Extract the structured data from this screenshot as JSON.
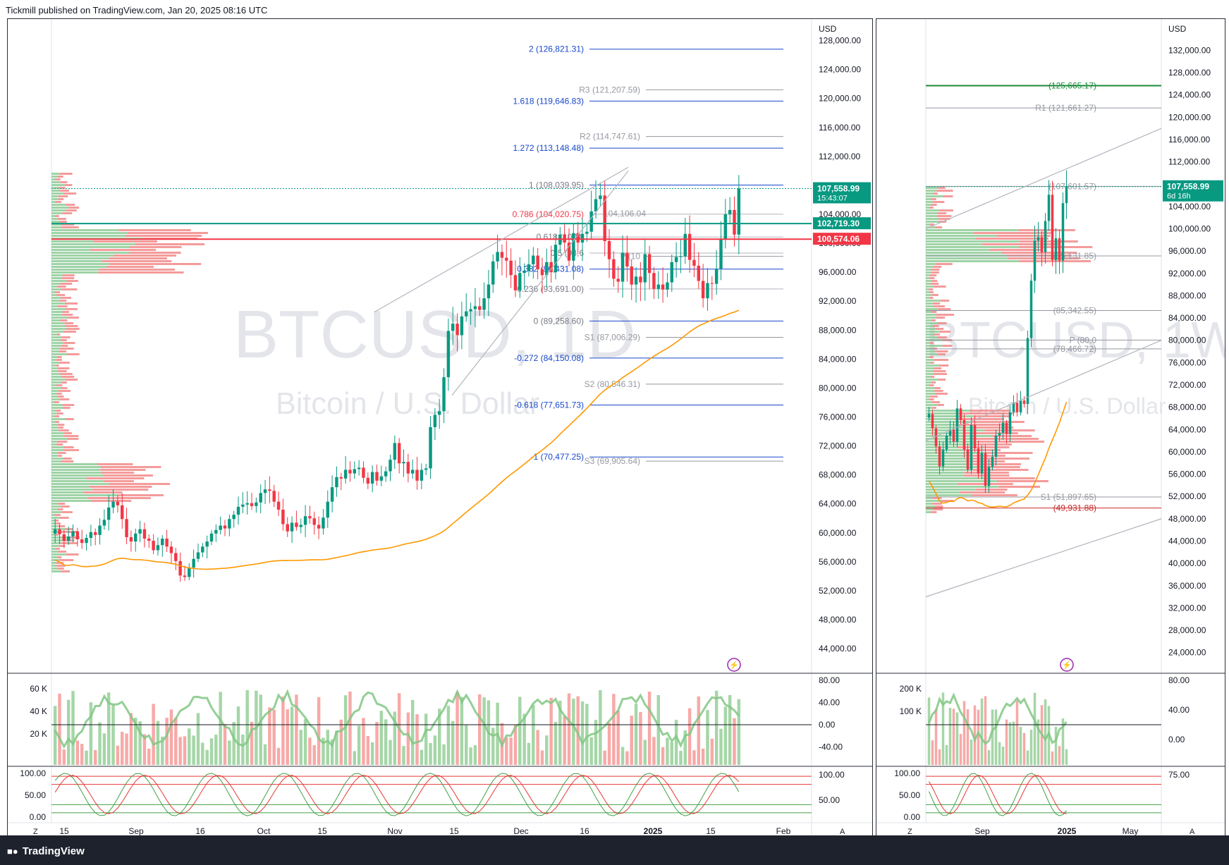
{
  "header": {
    "published": "Tickmill published on TradingView.com, Jan 20, 2025 08:16 UTC"
  },
  "footer": {
    "brand": "TradingView",
    "brand_icon": "tradingview-logo-icon"
  },
  "colors": {
    "up": "#089981",
    "down": "#f23645",
    "fib": "#2962ff",
    "pivot": "#9598a1",
    "ma": "#ff9800"
  },
  "chart_data": [
    {
      "type": "candlestick",
      "symbol": "BTCUSD, 1D",
      "description": "Bitcoin / U.S. Dollar",
      "currency": "USD",
      "y_ticks": [
        "128,000.00",
        "124,000.00",
        "120,000.00",
        "116,000.00",
        "112,000.00",
        "108,000.00",
        "104,000.00",
        "100,000.00",
        "96,000.00",
        "92,000.00",
        "88,000.00",
        "84,000.00",
        "80,000.00",
        "76,000.00",
        "72,000.00",
        "68,000.00",
        "64,000.00",
        "60,000.00",
        "56,000.00",
        "52,000.00",
        "48,000.00",
        "44,000.00"
      ],
      "ylim": [
        40600,
        130200
      ],
      "x_labels": [
        "15",
        "Sep",
        "16",
        "Oct",
        "15",
        "Nov",
        "15",
        "Dec",
        "16",
        "2025",
        "15",
        "Feb"
      ],
      "fib_levels": [
        {
          "label": "2 (126,821.31)",
          "value": 126821.31
        },
        {
          "label": "1.618 (119,646.83)",
          "value": 119646.83
        },
        {
          "label": "1.272 (113,148.48)",
          "value": 113148.48
        },
        {
          "label": "1 (108,039.95)",
          "value": 108039.95
        },
        {
          "label": "0.786 (104,020.75)",
          "value": 104020.75
        },
        {
          "label": "0.618 (100,8",
          "value": 100870
        },
        {
          "label": "0.5 (98,6",
          "value": 98650
        },
        {
          "label": "0.382 (96,431.08)",
          "value": 96431.08
        },
        {
          "label": "0.236 (93,691.00)",
          "value": 93691.0
        },
        {
          "label": "0 (89,258.60)",
          "value": 89258.6
        },
        {
          "label": "-0.272 (84,150.08)",
          "value": 84150.08
        },
        {
          "label": "-0.618 (77,651.73)",
          "value": 77651.73
        },
        {
          "label": "-1 (70,477.25)",
          "value": 70477.25
        }
      ],
      "pivots": [
        {
          "label": "R3 (121,207.59)",
          "value": 121207.59
        },
        {
          "label": "R2 (114,747.61)",
          "value": 114747.61
        },
        {
          "label": "P (10",
          "value": 98200
        },
        {
          "label": "S1 (87,006.29)",
          "value": 87006.29
        },
        {
          "label": "S2 (80,546.31)",
          "value": 80546.31
        },
        {
          "label": "S3 (69,905.64)",
          "value": 69905.64
        }
      ],
      "extra_label": "104,106.04",
      "price_tags": [
        {
          "text": "107,558.99",
          "sub": "15:43:07",
          "value": 107558.99,
          "color": "#089981"
        },
        {
          "text": "102,719.30",
          "value": 102719.3,
          "color": "#089981"
        },
        {
          "text": "100,574.06",
          "value": 100574.06,
          "color": "#f23645"
        }
      ],
      "closes": [
        60500,
        59800,
        58900,
        59500,
        60200,
        59100,
        58600,
        59300,
        60100,
        59700,
        61000,
        61800,
        63500,
        64300,
        63800,
        61900,
        59400,
        58800,
        59900,
        60500,
        59200,
        58900,
        57600,
        58300,
        59200,
        58100,
        57200,
        56100,
        54100,
        53900,
        55200,
        56400,
        57300,
        58100,
        58800,
        59900,
        60400,
        61000,
        60600,
        61900,
        62500,
        63600,
        63900,
        64100,
        63700,
        64200,
        65500,
        66000,
        65800,
        64300,
        63200,
        61200,
        60200,
        61400,
        60800,
        61100,
        62300,
        62000,
        61100,
        60600,
        62100,
        64300,
        66300,
        67700,
        67500,
        68700,
        68200,
        68800,
        69000,
        67600,
        66800,
        68400,
        67200,
        67800,
        68500,
        70100,
        72400,
        69600,
        69800,
        68200,
        68700,
        67200,
        68700,
        68900,
        74600,
        76300,
        76800,
        81500,
        87900,
        88900,
        87300,
        89900,
        90600,
        90900,
        91300,
        90800,
        92400,
        94300,
        97500,
        98800,
        98000,
        97600,
        95600,
        93500,
        95900,
        96200,
        97100,
        98300,
        96400,
        95600,
        97400,
        96000,
        99800,
        101200,
        100100,
        97600,
        101400,
        100100,
        101300,
        101600,
        104400,
        106100,
        106600,
        100300,
        97800,
        95100,
        94700,
        98700,
        96800,
        94300,
        95400,
        94600,
        98500,
        95900,
        93700,
        94300,
        93600,
        94600,
        97400,
        98100,
        98200,
        101300,
        97700,
        96900,
        94800,
        92400,
        94500,
        94400,
        96500,
        100600,
        104000,
        104600,
        101200,
        107559
      ],
      "volume_axis": [
        "60 K",
        "40 K",
        "20 K"
      ],
      "rsi_axis": [
        "80.00",
        "40.00",
        "0.00",
        "-40.00"
      ],
      "stoch_axis": [
        "100.00",
        "50.00",
        "0.00"
      ],
      "stoch_right_axis": [
        "100.00",
        "50.00"
      ]
    },
    {
      "type": "candlestick",
      "symbol": "BTCUSD, 1W",
      "description": "Bitcoin / U.S. Dollar",
      "currency": "USD",
      "y_ticks": [
        "132,000.00",
        "128,000.00",
        "124,000.00",
        "120,000.00",
        "116,000.00",
        "112,000.00",
        "108,000.00",
        "104,000.00",
        "100,000.00",
        "96,000.00",
        "92,000.00",
        "88,000.00",
        "84,000.00",
        "80,000.00",
        "76,000.00",
        "72,000.00",
        "68,000.00",
        "64,000.00",
        "60,000.00",
        "56,000.00",
        "52,000.00",
        "48,000.00",
        "44,000.00",
        "40,000.00",
        "36,000.00",
        "32,000.00",
        "28,000.00",
        "24,000.00"
      ],
      "ylim": [
        20300,
        136600
      ],
      "x_labels": [
        "Sep",
        "2025",
        "May"
      ],
      "levels": [
        {
          "label": "(125,665.17)",
          "value": 125665.17
        },
        {
          "label": "R1 (121,661.27)",
          "value": 121661.27
        },
        {
          "label": "(107,601.57)",
          "value": 107601.57
        },
        {
          "label": "(95,131.85)",
          "value": 95131.85
        },
        {
          "label": "(85,342.55)",
          "value": 85342.55
        },
        {
          "label": "P (80,0",
          "value": 80050
        },
        {
          "label": "(78,466.72)",
          "value": 78466.72
        },
        {
          "label": "S1 (51,897.65)",
          "value": 51897.65
        },
        {
          "label": "(49,931.88)",
          "value": 49931.88
        }
      ],
      "price_tag": {
        "text": "107,558.99",
        "sub": "6d 16h",
        "value": 107558.99
      },
      "closes": [
        66800,
        64200,
        61000,
        57400,
        60400,
        62900,
        64000,
        61800,
        67800,
        65700,
        60400,
        56800,
        64800,
        60600,
        56100,
        59800,
        53900,
        57300,
        59100,
        62900,
        63400,
        65200,
        63200,
        67100,
        68800,
        67100,
        69200,
        68600,
        80400,
        90700,
        97900,
        98500,
        95800,
        101400,
        106100,
        94400,
        98300,
        94300,
        104600,
        107559
      ],
      "volume_axis": [
        "200 K",
        "100 K"
      ],
      "rsi_axis": [
        "80.00",
        "40.00",
        "0.00"
      ],
      "stoch_axis": [
        "100.00",
        "50.00",
        "0.00"
      ],
      "stoch_right_axis": [
        "75.00"
      ]
    }
  ]
}
